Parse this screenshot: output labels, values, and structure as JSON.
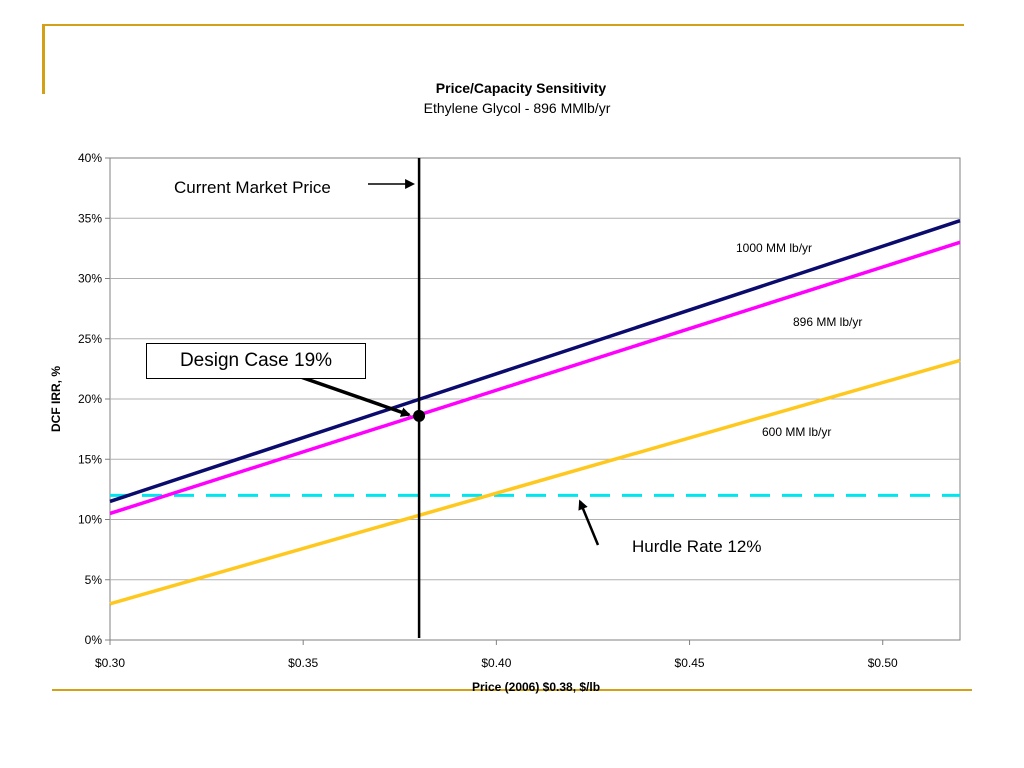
{
  "colors": {
    "frame_accent": "#d4a017",
    "series_1000": "#0b0b6e",
    "series_896": "#ff00ff",
    "series_600": "#ffc81e",
    "hurdle": "#00e5ee",
    "market_line": "#000000"
  },
  "chart_data": {
    "type": "line",
    "title": "Price/Capacity Sensitivity",
    "subtitle": "Ethylene Glycol - 896 MMlb/yr",
    "xlabel": "Price (2006) $0.38, $/lb",
    "ylabel": "DCF IRR, %",
    "xlim": [
      0.3,
      0.52
    ],
    "ylim": [
      0,
      40
    ],
    "grid": "horizontal",
    "x_ticks": [
      0.3,
      0.35,
      0.4,
      0.45,
      0.5
    ],
    "x_tick_labels": [
      "$0.30",
      "$0.35",
      "$0.40",
      "$0.45",
      "$0.50"
    ],
    "y_ticks": [
      0,
      5,
      10,
      15,
      20,
      25,
      30,
      35,
      40
    ],
    "y_tick_labels": [
      "0%",
      "5%",
      "10%",
      "15%",
      "20%",
      "25%",
      "30%",
      "35%",
      "40%"
    ],
    "series": [
      {
        "name": "1000 MM lb/yr",
        "x": [
          0.3,
          0.52
        ],
        "y": [
          11.5,
          34.8
        ],
        "color": "#0b0b6e"
      },
      {
        "name": "896 MM lb/yr",
        "x": [
          0.3,
          0.52
        ],
        "y": [
          10.5,
          33.0
        ],
        "color": "#ff00ff"
      },
      {
        "name": "600 MM lb/yr",
        "x": [
          0.3,
          0.52
        ],
        "y": [
          3.0,
          23.2
        ],
        "color": "#ffc81e"
      }
    ],
    "hurdle_rate": {
      "y": 12,
      "label": "Hurdle Rate 12%",
      "style": "dashed",
      "color": "#00e5ee"
    },
    "market_price": {
      "x": 0.38,
      "label": "Current Market Price"
    },
    "design_case": {
      "x": 0.38,
      "y": 18.6,
      "label": "Design Case 19%"
    }
  }
}
